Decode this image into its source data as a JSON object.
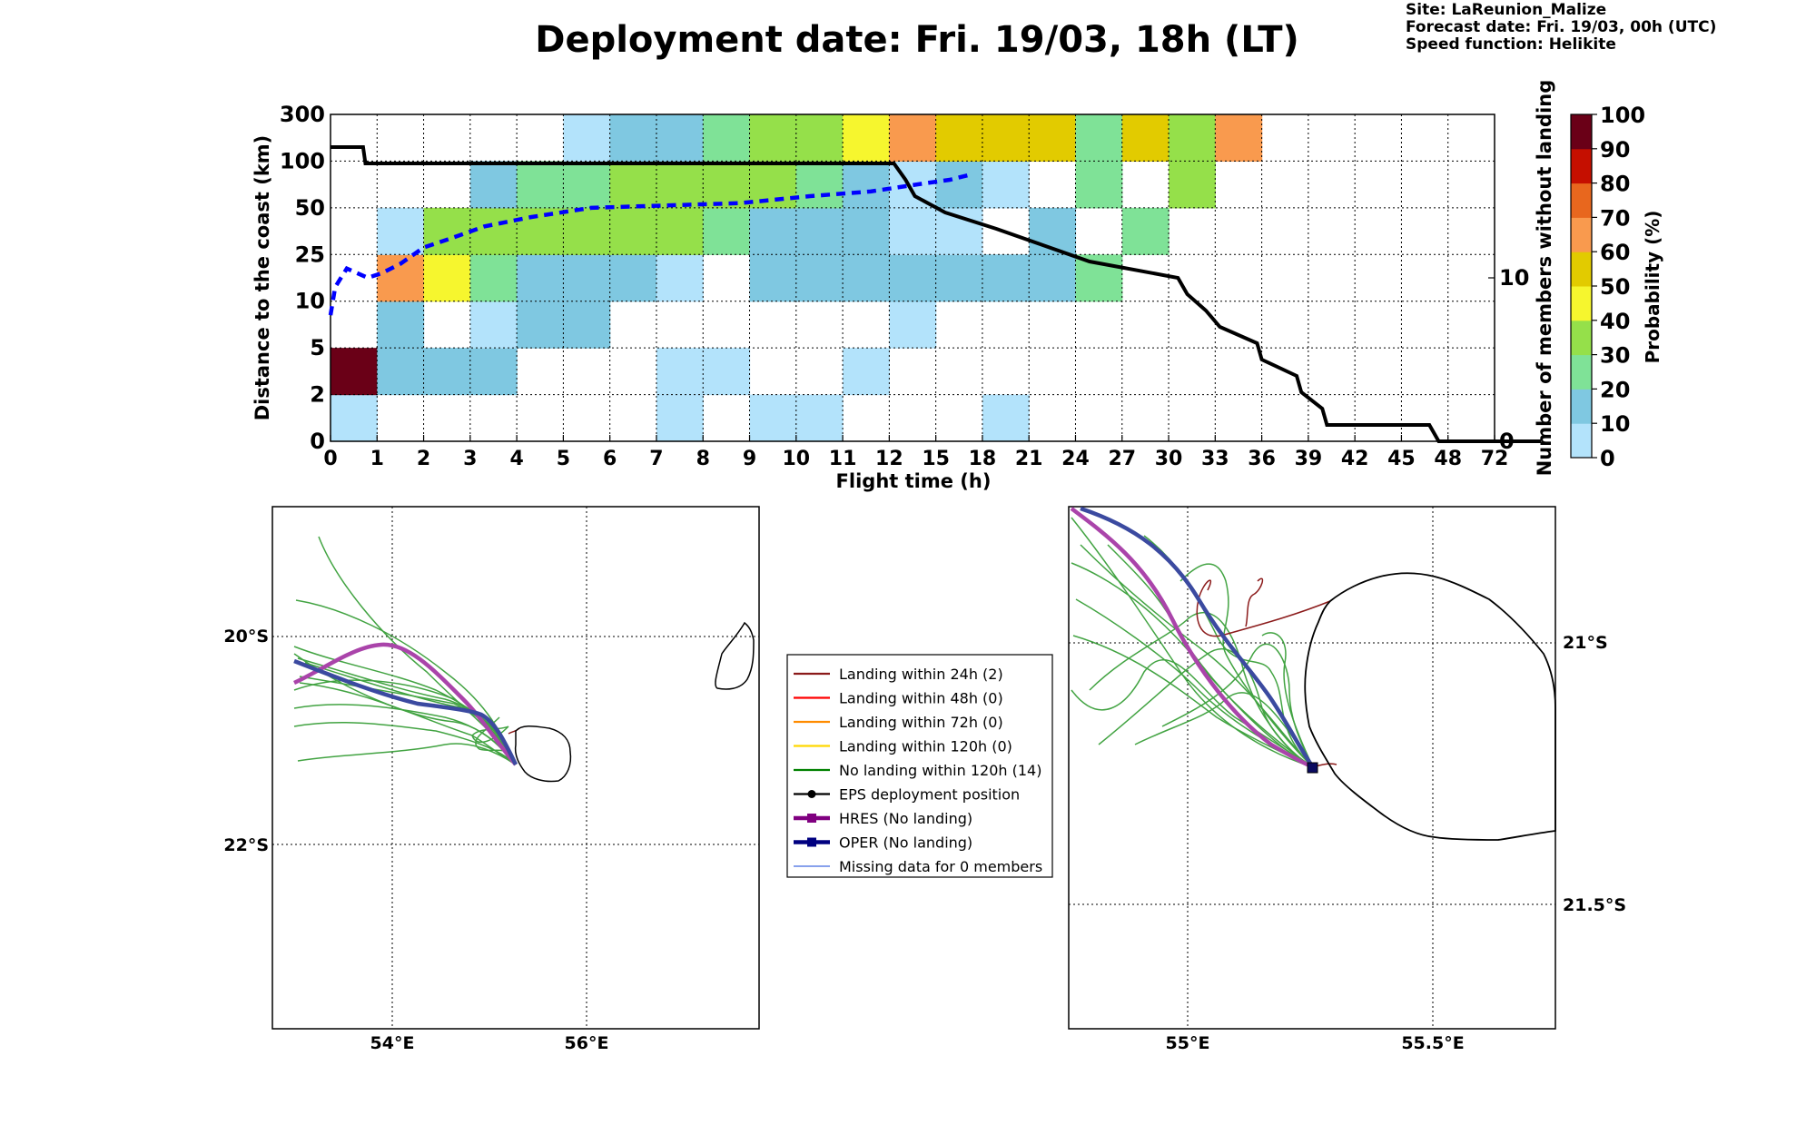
{
  "header": {
    "title": "Deployment date: Fri. 19/03, 18h (LT)",
    "site": "Site: LaReunion_Malize",
    "forecast_date": "Forecast date: Fri. 19/03, 00h (UTC)",
    "speed_function": "Speed function: Helikite"
  },
  "chart_data": [
    {
      "type": "heatmap",
      "xlabel": "Flight time (h)",
      "ylabel": "Distance to the coast (km)",
      "y2label": "Number of members without landing",
      "colorbar_label": "Probability (%)",
      "x_ticks": [
        "0",
        "1",
        "2",
        "3",
        "4",
        "5",
        "6",
        "7",
        "8",
        "9",
        "10",
        "11",
        "12",
        "15",
        "18",
        "21",
        "24",
        "27",
        "30",
        "33",
        "36",
        "39",
        "42",
        "45",
        "48",
        "72"
      ],
      "y_ticks": [
        "0",
        "2",
        "5",
        "10",
        "25",
        "50",
        "100",
        "300"
      ],
      "y2_ticks": [
        "0",
        "10"
      ],
      "y2_range": [
        0,
        20
      ],
      "colorbar_ticks": [
        "0",
        "10",
        "20",
        "30",
        "40",
        "50",
        "60",
        "70",
        "80",
        "90",
        "100"
      ],
      "colorbar_colors": [
        "#b3e3fb",
        "#7fc8e1",
        "#7fe297",
        "#95e04a",
        "#f6f62e",
        "#e2cb00",
        "#f99a4e",
        "#e8671e",
        "#c50f00",
        "#6a0017"
      ],
      "grid": true,
      "probability_cells": [
        [
          0,
          0,
          0
        ],
        [
          0,
          1,
          9
        ],
        [
          1,
          1,
          1
        ],
        [
          1,
          2,
          1
        ],
        [
          1,
          3,
          6
        ],
        [
          1,
          4,
          0
        ],
        [
          2,
          1,
          1
        ],
        [
          2,
          3,
          4
        ],
        [
          2,
          4,
          3
        ],
        [
          3,
          1,
          1
        ],
        [
          3,
          2,
          0
        ],
        [
          3,
          3,
          2
        ],
        [
          3,
          4,
          3
        ],
        [
          3,
          5,
          1
        ],
        [
          4,
          2,
          1
        ],
        [
          4,
          3,
          1
        ],
        [
          4,
          4,
          3
        ],
        [
          4,
          5,
          2
        ],
        [
          5,
          2,
          1
        ],
        [
          5,
          3,
          1
        ],
        [
          5,
          4,
          3
        ],
        [
          5,
          5,
          2
        ],
        [
          5,
          6,
          0
        ],
        [
          6,
          3,
          1
        ],
        [
          6,
          4,
          3
        ],
        [
          6,
          5,
          3
        ],
        [
          6,
          6,
          1
        ],
        [
          7,
          0,
          0
        ],
        [
          7,
          1,
          0
        ],
        [
          7,
          3,
          0
        ],
        [
          7,
          4,
          3
        ],
        [
          7,
          5,
          3
        ],
        [
          7,
          6,
          1
        ],
        [
          8,
          1,
          0
        ],
        [
          8,
          4,
          2
        ],
        [
          8,
          5,
          3
        ],
        [
          8,
          6,
          2
        ],
        [
          9,
          0,
          0
        ],
        [
          9,
          3,
          1
        ],
        [
          9,
          4,
          1
        ],
        [
          9,
          5,
          3
        ],
        [
          9,
          6,
          3
        ],
        [
          10,
          0,
          0
        ],
        [
          10,
          3,
          1
        ],
        [
          10,
          4,
          1
        ],
        [
          10,
          5,
          2
        ],
        [
          10,
          6,
          3
        ],
        [
          11,
          1,
          0
        ],
        [
          11,
          3,
          1
        ],
        [
          11,
          4,
          1
        ],
        [
          11,
          5,
          1
        ],
        [
          11,
          6,
          4
        ],
        [
          12,
          2,
          0
        ],
        [
          12,
          3,
          1
        ],
        [
          12,
          4,
          0
        ],
        [
          12,
          5,
          0
        ],
        [
          12,
          6,
          6
        ],
        [
          13,
          3,
          1
        ],
        [
          13,
          4,
          0
        ],
        [
          13,
          5,
          1
        ],
        [
          13,
          6,
          5
        ],
        [
          14,
          0,
          0
        ],
        [
          14,
          3,
          1
        ],
        [
          14,
          5,
          0
        ],
        [
          14,
          6,
          5
        ],
        [
          15,
          3,
          1
        ],
        [
          15,
          4,
          1
        ],
        [
          15,
          6,
          5
        ],
        [
          16,
          3,
          2
        ],
        [
          16,
          5,
          2
        ],
        [
          16,
          6,
          2
        ],
        [
          17,
          4,
          2
        ],
        [
          17,
          6,
          5
        ],
        [
          18,
          5,
          3
        ],
        [
          18,
          6,
          3
        ],
        [
          19,
          6,
          6
        ]
      ],
      "line_members_without_landing": {
        "color": "#000000",
        "points": [
          [
            0,
            18
          ],
          [
            0.7,
            18
          ],
          [
            0.75,
            17
          ],
          [
            12.1,
            17
          ],
          [
            12.35,
            16
          ],
          [
            12.55,
            15
          ],
          [
            13.2,
            14
          ],
          [
            14.3,
            13
          ],
          [
            15.3,
            12
          ],
          [
            16.3,
            11
          ],
          [
            18.2,
            10
          ],
          [
            18.4,
            9
          ],
          [
            18.8,
            8
          ],
          [
            19.1,
            7
          ],
          [
            19.9,
            6
          ],
          [
            20.0,
            5
          ],
          [
            20.75,
            4
          ],
          [
            20.85,
            3
          ],
          [
            21.3,
            2
          ],
          [
            21.4,
            1
          ],
          [
            21.8,
            1
          ],
          [
            23.6,
            1
          ],
          [
            23.8,
            0
          ],
          [
            26.0,
            0
          ]
        ]
      },
      "line_dashed_blue": {
        "color": "#0000ff",
        "points": [
          [
            0,
            2.7
          ],
          [
            0.1,
            3.3
          ],
          [
            0.35,
            3.7
          ],
          [
            0.8,
            3.5
          ],
          [
            1.1,
            3.6
          ],
          [
            1.5,
            3.8
          ],
          [
            2.0,
            4.15
          ],
          [
            2.6,
            4.35
          ],
          [
            3.3,
            4.6
          ],
          [
            4.3,
            4.8
          ],
          [
            5.6,
            5.0
          ],
          [
            7.2,
            5.05
          ],
          [
            8.8,
            5.1
          ],
          [
            10.3,
            5.25
          ],
          [
            11.6,
            5.35
          ],
          [
            12.6,
            5.5
          ],
          [
            13.3,
            5.6
          ],
          [
            13.7,
            5.7
          ]
        ]
      }
    },
    {
      "type": "map",
      "lat_labels": [
        "20°S",
        "22°S"
      ],
      "lon_labels": [
        "54°E",
        "56°E"
      ],
      "legend": [
        {
          "label": "Landing within 24h (2)",
          "color": "#8b1a1a"
        },
        {
          "label": "Landing within 48h (0)",
          "color": "#ff0000"
        },
        {
          "label": "Landing within 72h (0)",
          "color": "#ff8c00"
        },
        {
          "label": "Landing within 120h (0)",
          "color": "#ffd700"
        },
        {
          "label": "No landing within 120h (14)",
          "color": "#008000"
        },
        {
          "label": "EPS deployment position",
          "color": "#000000"
        },
        {
          "label": "HRES (No landing)",
          "color": "#800080"
        },
        {
          "label": "OPER (No landing)",
          "color": "#000080"
        },
        {
          "label": "Missing data for 0 members",
          "color": "#4169e1"
        }
      ]
    },
    {
      "type": "map",
      "lat_labels": [
        "21°S",
        "21.5°S"
      ],
      "lon_labels": [
        "55°E",
        "55.5°E"
      ]
    }
  ]
}
